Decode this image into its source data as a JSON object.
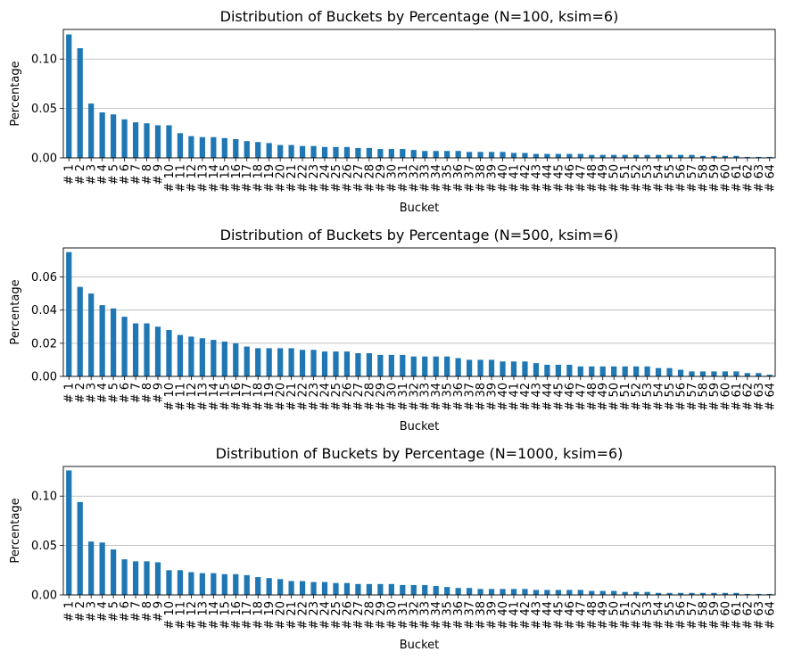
{
  "chart_data": [
    {
      "type": "bar",
      "title": "Distribution of Buckets by Percentage (N=100, ksim=6)",
      "xlabel": "Bucket",
      "ylabel": "Percentage",
      "ylim": [
        0,
        0.13
      ],
      "yticks": [
        "0.00",
        "0.05",
        "0.10"
      ],
      "grid": "y",
      "bar_color": "#1f77b4",
      "categories": [
        "# 1",
        "# 2",
        "# 3",
        "# 4",
        "# 5",
        "# 6",
        "# 7",
        "# 8",
        "# 9",
        "# 10",
        "# 11",
        "# 12",
        "# 13",
        "# 14",
        "# 15",
        "# 16",
        "# 17",
        "# 18",
        "# 19",
        "# 20",
        "# 21",
        "# 22",
        "# 23",
        "# 24",
        "# 25",
        "# 26",
        "# 27",
        "# 28",
        "# 29",
        "# 30",
        "# 31",
        "# 32",
        "# 33",
        "# 34",
        "# 35",
        "# 36",
        "# 37",
        "# 38",
        "# 39",
        "# 40",
        "# 41",
        "# 42",
        "# 43",
        "# 44",
        "# 45",
        "# 46",
        "# 47",
        "# 48",
        "# 49",
        "# 50",
        "# 51",
        "# 52",
        "# 53",
        "# 54",
        "# 55",
        "# 56",
        "# 57",
        "# 58",
        "# 59",
        "# 60",
        "# 61",
        "# 62",
        "# 63",
        "# 64"
      ],
      "values": [
        0.125,
        0.111,
        0.055,
        0.046,
        0.044,
        0.039,
        0.036,
        0.035,
        0.033,
        0.033,
        0.025,
        0.022,
        0.021,
        0.021,
        0.02,
        0.019,
        0.017,
        0.016,
        0.015,
        0.013,
        0.013,
        0.012,
        0.012,
        0.011,
        0.011,
        0.011,
        0.01,
        0.01,
        0.009,
        0.009,
        0.009,
        0.008,
        0.007,
        0.007,
        0.007,
        0.007,
        0.006,
        0.006,
        0.006,
        0.006,
        0.005,
        0.005,
        0.004,
        0.004,
        0.004,
        0.004,
        0.004,
        0.003,
        0.003,
        0.003,
        0.003,
        0.003,
        0.003,
        0.003,
        0.003,
        0.003,
        0.003,
        0.002,
        0.002,
        0.002,
        0.002,
        0.001,
        0.001,
        0.001
      ]
    },
    {
      "type": "bar",
      "title": "Distribution of Buckets by Percentage (N=500, ksim=6)",
      "xlabel": "Bucket",
      "ylabel": "Percentage",
      "ylim": [
        0,
        0.0775
      ],
      "yticks": [
        "0.00",
        "0.02",
        "0.04",
        "0.06"
      ],
      "grid": "y",
      "bar_color": "#1f77b4",
      "categories": [
        "# 1",
        "# 2",
        "# 3",
        "# 4",
        "# 5",
        "# 6",
        "# 7",
        "# 8",
        "# 9",
        "# 10",
        "# 11",
        "# 12",
        "# 13",
        "# 14",
        "# 15",
        "# 16",
        "# 17",
        "# 18",
        "# 19",
        "# 20",
        "# 21",
        "# 22",
        "# 23",
        "# 24",
        "# 25",
        "# 26",
        "# 27",
        "# 28",
        "# 29",
        "# 30",
        "# 31",
        "# 32",
        "# 33",
        "# 34",
        "# 35",
        "# 36",
        "# 37",
        "# 38",
        "# 39",
        "# 40",
        "# 41",
        "# 42",
        "# 43",
        "# 44",
        "# 45",
        "# 46",
        "# 47",
        "# 48",
        "# 49",
        "# 50",
        "# 51",
        "# 52",
        "# 53",
        "# 54",
        "# 55",
        "# 56",
        "# 57",
        "# 58",
        "# 59",
        "# 60",
        "# 61",
        "# 62",
        "# 63",
        "# 64"
      ],
      "values": [
        0.075,
        0.054,
        0.05,
        0.043,
        0.041,
        0.036,
        0.032,
        0.032,
        0.03,
        0.028,
        0.025,
        0.024,
        0.023,
        0.022,
        0.021,
        0.02,
        0.018,
        0.017,
        0.017,
        0.017,
        0.017,
        0.016,
        0.016,
        0.015,
        0.015,
        0.015,
        0.014,
        0.014,
        0.013,
        0.013,
        0.013,
        0.012,
        0.012,
        0.012,
        0.012,
        0.011,
        0.01,
        0.01,
        0.01,
        0.009,
        0.009,
        0.009,
        0.008,
        0.007,
        0.007,
        0.007,
        0.006,
        0.006,
        0.006,
        0.006,
        0.006,
        0.006,
        0.006,
        0.005,
        0.005,
        0.004,
        0.003,
        0.003,
        0.003,
        0.003,
        0.003,
        0.002,
        0.002,
        0.001
      ]
    },
    {
      "type": "bar",
      "title": "Distribution of Buckets by Percentage (N=1000, ksim=6)",
      "xlabel": "Bucket",
      "ylabel": "Percentage",
      "ylim": [
        0,
        0.13
      ],
      "yticks": [
        "0.00",
        "0.05",
        "0.10"
      ],
      "grid": "y",
      "bar_color": "#1f77b4",
      "categories": [
        "# 1",
        "# 2",
        "# 3",
        "# 4",
        "# 5",
        "# 6",
        "# 7",
        "# 8",
        "# 9",
        "# 10",
        "# 11",
        "# 12",
        "# 13",
        "# 14",
        "# 15",
        "# 16",
        "# 17",
        "# 18",
        "# 19",
        "# 20",
        "# 21",
        "# 22",
        "# 23",
        "# 24",
        "# 25",
        "# 26",
        "# 27",
        "# 28",
        "# 29",
        "# 30",
        "# 31",
        "# 32",
        "# 33",
        "# 34",
        "# 35",
        "# 36",
        "# 37",
        "# 38",
        "# 39",
        "# 40",
        "# 41",
        "# 42",
        "# 43",
        "# 44",
        "# 45",
        "# 46",
        "# 47",
        "# 48",
        "# 49",
        "# 50",
        "# 51",
        "# 52",
        "# 53",
        "# 54",
        "# 55",
        "# 56",
        "# 57",
        "# 58",
        "# 59",
        "# 60",
        "# 61",
        "# 62",
        "# 63",
        "# 64"
      ],
      "values": [
        0.126,
        0.094,
        0.054,
        0.053,
        0.046,
        0.036,
        0.034,
        0.034,
        0.033,
        0.025,
        0.025,
        0.023,
        0.022,
        0.022,
        0.021,
        0.021,
        0.02,
        0.018,
        0.017,
        0.016,
        0.014,
        0.014,
        0.013,
        0.013,
        0.012,
        0.012,
        0.011,
        0.011,
        0.011,
        0.011,
        0.01,
        0.01,
        0.01,
        0.009,
        0.008,
        0.007,
        0.007,
        0.006,
        0.006,
        0.006,
        0.006,
        0.006,
        0.005,
        0.005,
        0.005,
        0.005,
        0.005,
        0.004,
        0.004,
        0.004,
        0.003,
        0.003,
        0.003,
        0.002,
        0.002,
        0.002,
        0.002,
        0.002,
        0.002,
        0.002,
        0.002,
        0.001,
        0.001,
        0.001
      ]
    }
  ]
}
